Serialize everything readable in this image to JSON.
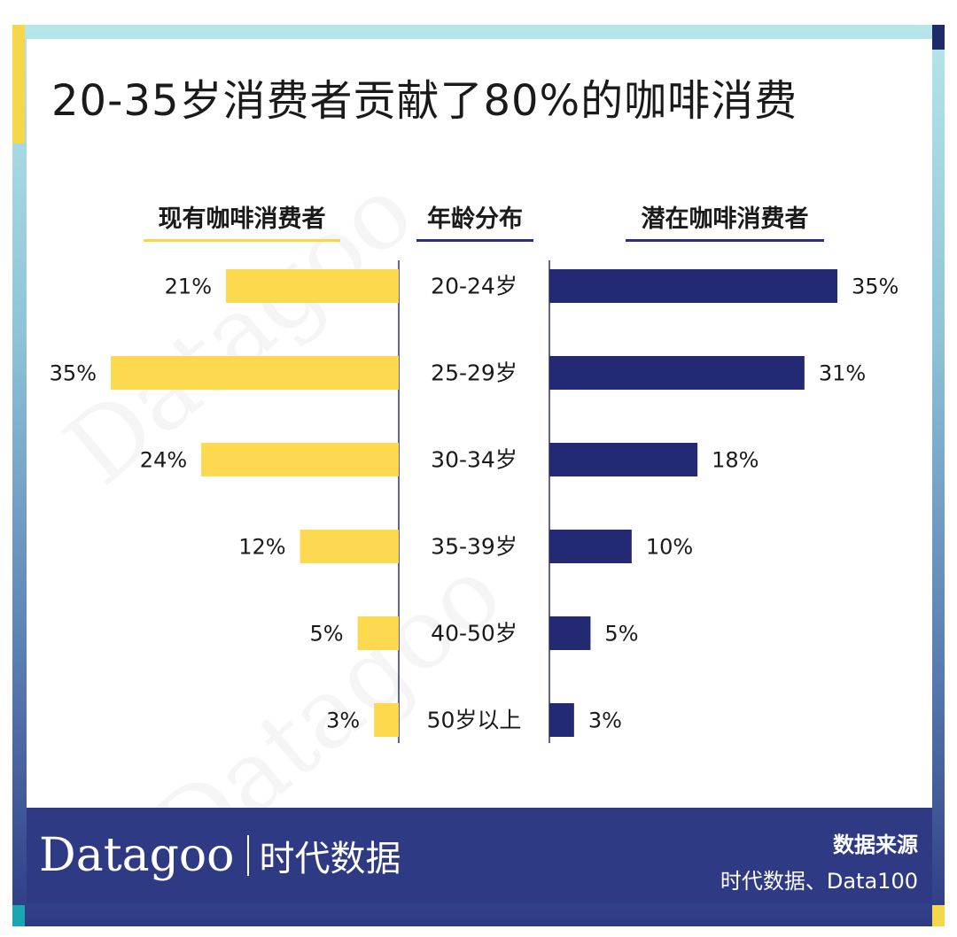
{
  "colors": {
    "left_bar": "#fcd94e",
    "right_bar": "#232a73",
    "accent_yellow": "#f7d74a",
    "accent_navy": "#1f2a6b",
    "accent_teal": "#1aa6b3",
    "footer": "#2f3a85"
  },
  "title": "20-35岁消费者贡献了80%的咖啡消费",
  "headers": {
    "left": "现有咖啡消费者",
    "middle": "年龄分布",
    "right": "潜在咖啡消费者"
  },
  "chart_data": {
    "type": "bar",
    "orientation": "horizontal-butterfly",
    "categories": [
      "20-24岁",
      "25-29岁",
      "30-34岁",
      "35-39岁",
      "40-50岁",
      "50岁以上"
    ],
    "series": [
      {
        "name": "现有咖啡消费者",
        "values": [
          21,
          35,
          24,
          12,
          5,
          3
        ],
        "labels": [
          "21%",
          "35%",
          "24%",
          "12%",
          "5%",
          "3%"
        ]
      },
      {
        "name": "潜在咖啡消费者",
        "values": [
          35,
          31,
          18,
          10,
          5,
          3
        ],
        "labels": [
          "35%",
          "31%",
          "18%",
          "10%",
          "5%",
          "3%"
        ]
      }
    ],
    "unit": "%"
  },
  "footer": {
    "logo": "Datagoo",
    "logo_cn": "时代数据",
    "source_label": "数据来源",
    "source_value": "时代数据、Data100"
  }
}
